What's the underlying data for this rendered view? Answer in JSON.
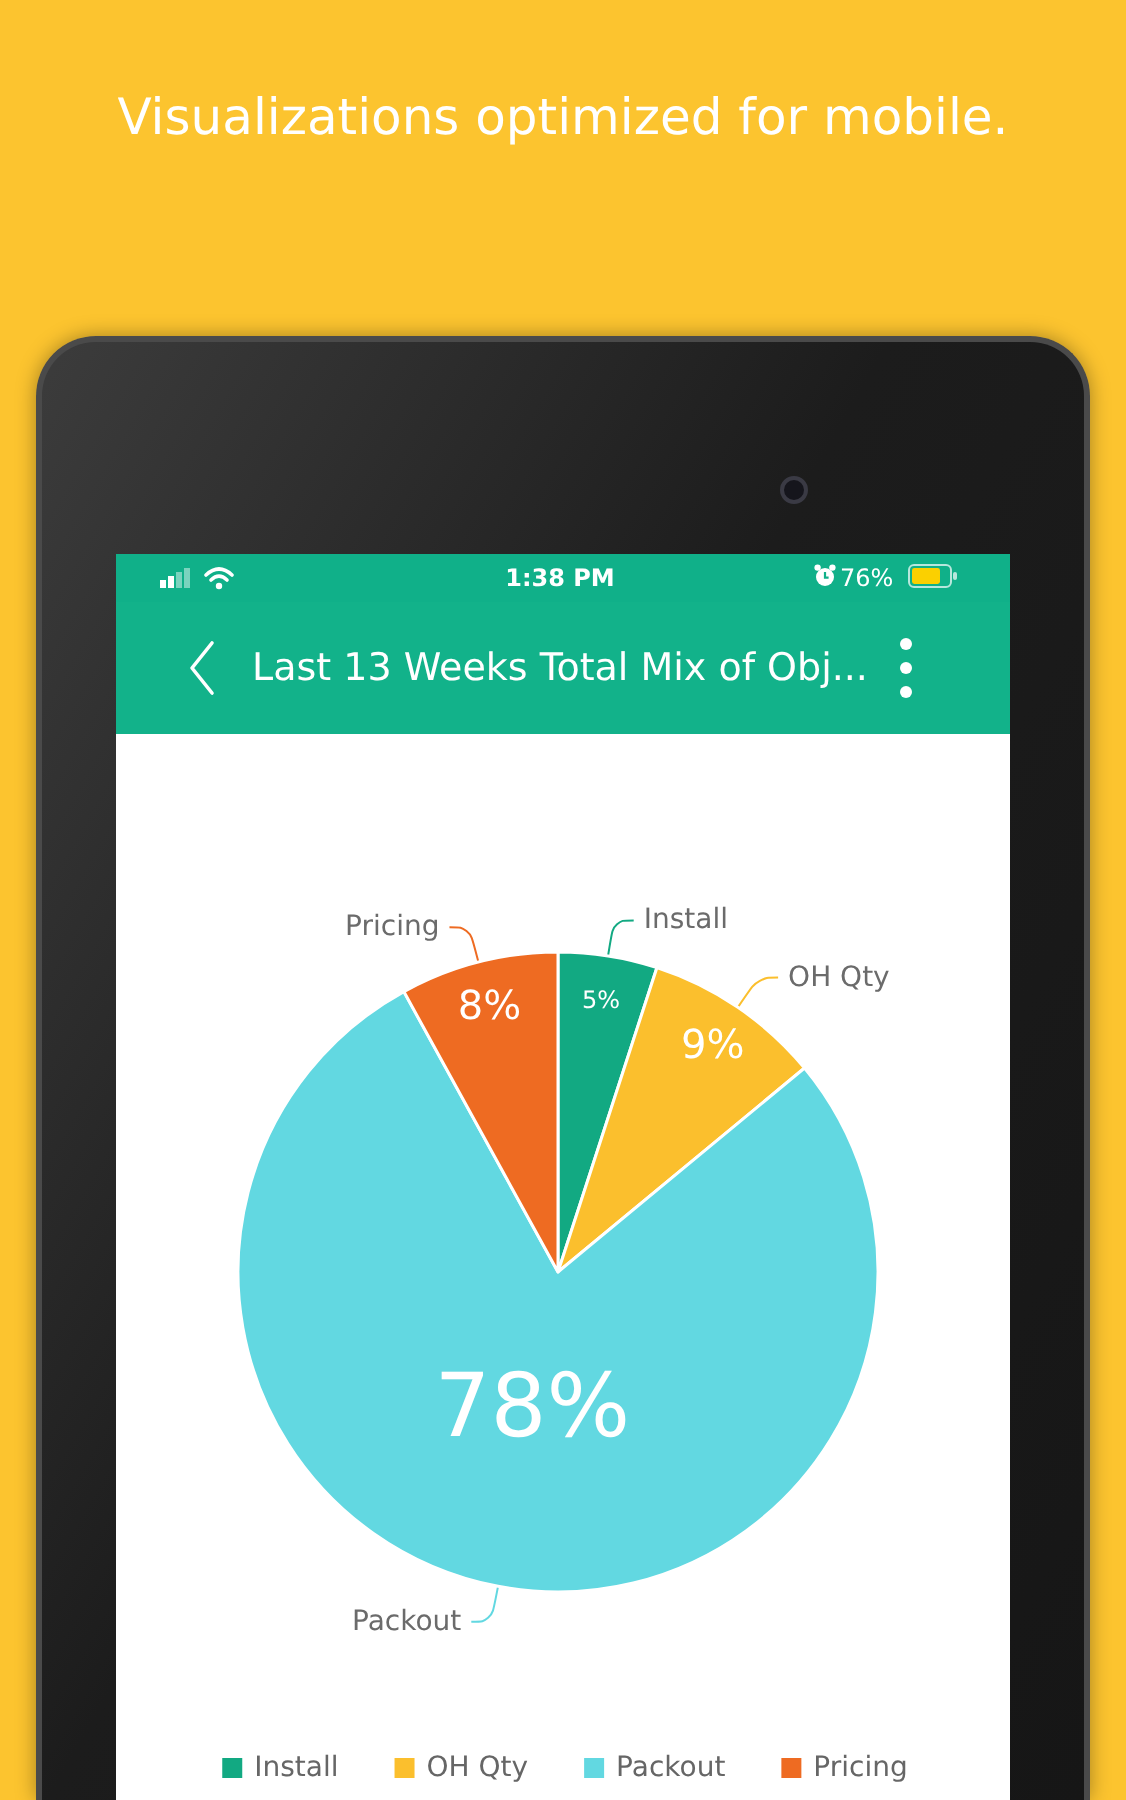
{
  "chart_data": {
    "type": "pie",
    "title": "Last 13 Weeks Total Mix of Obj...",
    "annotations": [
      "Visualizations optimized for mobile.",
      "1:38 PM",
      "76%"
    ],
    "categories": [
      "Install",
      "OH Qty",
      "Packout",
      "Pricing"
    ],
    "values": [
      5,
      9,
      78,
      8
    ],
    "colors": [
      "#12a982",
      "#fbbf2d",
      "#62d8e1",
      "#ee6b22"
    ],
    "value_labels": [
      "5%",
      "9%",
      "78%",
      "8%"
    ],
    "legend": "bottom"
  }
}
